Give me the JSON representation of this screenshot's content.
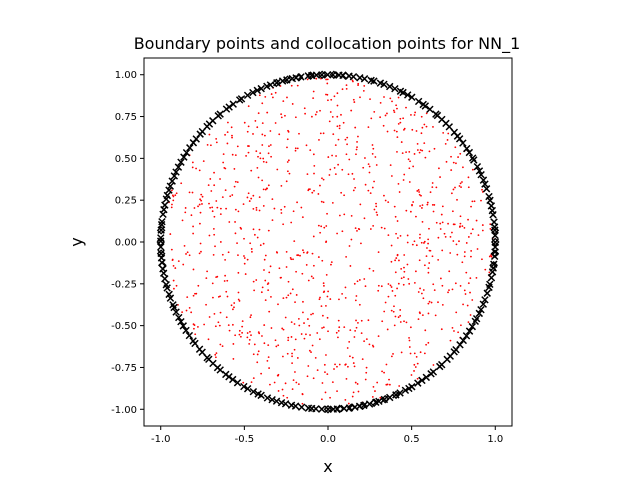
{
  "chart_data": {
    "type": "scatter",
    "title": "Boundary points and collocation points for NN_1",
    "xlabel": "x",
    "ylabel": "y",
    "xlim": [
      -1.1,
      1.1
    ],
    "ylim": [
      -1.1,
      1.1
    ],
    "xticks": [
      "-1.0",
      "-0.5",
      "0.0",
      "0.5",
      "1.0"
    ],
    "yticks": [
      "-1.00",
      "-0.75",
      "-0.50",
      "-0.25",
      "0.00",
      "0.25",
      "0.50",
      "0.75",
      "1.00"
    ],
    "xtick_values": [
      -1.0,
      -0.5,
      0.0,
      0.5,
      1.0
    ],
    "ytick_values": [
      -1.0,
      -0.75,
      -0.5,
      -0.25,
      0.0,
      0.25,
      0.5,
      0.75,
      1.0
    ],
    "grid": false,
    "series": [
      {
        "marker": "dot",
        "color": "#ff0000",
        "region": "unit-disk-interior",
        "count": 1000
      },
      {
        "marker": "x",
        "color": "#000000",
        "region": "unit-circle-boundary",
        "count": 200
      },
      {
        "marker": "diamond",
        "color": "#000000",
        "region": "unit-circle-boundary-clusters",
        "angles_deg": [
          84,
          88,
          92,
          96,
          100,
          104,
          108,
          176,
          180,
          184,
          188,
          270,
          274,
          278,
          282,
          286,
          290,
          294,
          0,
          4,
          356,
          352
        ]
      }
    ]
  }
}
